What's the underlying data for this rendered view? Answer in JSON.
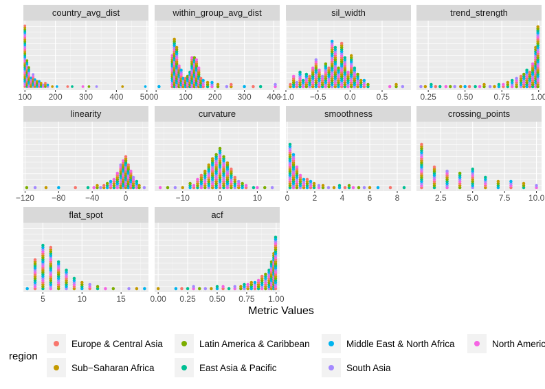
{
  "chart_data": {
    "type": "dotplot",
    "title": "",
    "xlabel": "Metric Values",
    "ylabel": "",
    "legend": {
      "title": "region",
      "placement": "bottom",
      "entries": [
        {
          "label": "Europe & Central Asia",
          "color": "#F8766D"
        },
        {
          "label": "Latin America & Caribbean",
          "color": "#7CAE00"
        },
        {
          "label": "Middle East & North Africa",
          "color": "#00B4EF"
        },
        {
          "label": "North America",
          "color": "#F564E3"
        },
        {
          "label": "Sub−Saharan Africa",
          "color": "#C49A00"
        },
        {
          "label": "East Asia & Pacific",
          "color": "#00C094"
        },
        {
          "label": "South Asia",
          "color": "#A58AFF"
        }
      ]
    },
    "panels": [
      {
        "name": "country_avg_dist",
        "xlim": [
          95,
          505
        ],
        "ticks": [
          100,
          200,
          300,
          400,
          500
        ],
        "tick_labels": [
          "100",
          "200",
          "300",
          "400",
          "500"
        ],
        "bins": [
          [
            100,
            36
          ],
          [
            107,
            16
          ],
          [
            113,
            12
          ],
          [
            120,
            6
          ],
          [
            127,
            8
          ],
          [
            133,
            5
          ],
          [
            140,
            4
          ],
          [
            147,
            4
          ],
          [
            153,
            3
          ],
          [
            160,
            2
          ],
          [
            167,
            3
          ],
          [
            175,
            2
          ],
          [
            190,
            1
          ],
          [
            205,
            1
          ],
          [
            240,
            1
          ],
          [
            255,
            1
          ],
          [
            290,
            1
          ],
          [
            310,
            1
          ],
          [
            335,
            1
          ],
          [
            420,
            1
          ],
          [
            495,
            1
          ]
        ]
      },
      {
        "name": "within_group_avg_dist",
        "xlim": [
          -5,
          420
        ],
        "ticks": [
          0,
          100,
          200,
          300,
          400
        ],
        "tick_labels": [
          "0",
          "100",
          "200",
          "300",
          "400"
        ],
        "bins": [
          [
            10,
            1
          ],
          [
            55,
            16
          ],
          [
            62,
            24
          ],
          [
            70,
            20
          ],
          [
            78,
            11
          ],
          [
            85,
            9
          ],
          [
            92,
            5
          ],
          [
            100,
            5
          ],
          [
            107,
            6
          ],
          [
            115,
            8
          ],
          [
            122,
            15
          ],
          [
            130,
            15
          ],
          [
            137,
            14
          ],
          [
            145,
            10
          ],
          [
            152,
            5
          ],
          [
            160,
            4
          ],
          [
            175,
            3
          ],
          [
            190,
            3
          ],
          [
            210,
            2
          ],
          [
            240,
            1
          ],
          [
            255,
            2
          ],
          [
            300,
            1
          ],
          [
            330,
            1
          ],
          [
            355,
            1
          ],
          [
            405,
            2
          ]
        ]
      },
      {
        "name": "sil_width",
        "xlim": [
          -1.0,
          0.95
        ],
        "ticks": [
          -1.0,
          -0.5,
          0.0,
          0.5
        ],
        "tick_labels": [
          "−1.0",
          "−0.5",
          "0.0",
          "0.5"
        ],
        "bins": [
          [
            -0.93,
            2
          ],
          [
            -0.88,
            6
          ],
          [
            -0.83,
            3
          ],
          [
            -0.78,
            8
          ],
          [
            -0.73,
            4
          ],
          [
            -0.68,
            7
          ],
          [
            -0.63,
            6
          ],
          [
            -0.58,
            10
          ],
          [
            -0.53,
            14
          ],
          [
            -0.48,
            9
          ],
          [
            -0.43,
            6
          ],
          [
            -0.38,
            12
          ],
          [
            -0.33,
            10
          ],
          [
            -0.28,
            23
          ],
          [
            -0.23,
            20
          ],
          [
            -0.18,
            10
          ],
          [
            -0.13,
            22
          ],
          [
            -0.08,
            15
          ],
          [
            -0.03,
            8
          ],
          [
            0.02,
            16
          ],
          [
            0.07,
            10
          ],
          [
            0.12,
            7
          ],
          [
            0.17,
            4
          ],
          [
            0.22,
            4
          ],
          [
            0.28,
            2
          ],
          [
            0.62,
            1
          ],
          [
            0.72,
            2
          ],
          [
            0.82,
            1
          ]
        ]
      },
      {
        "name": "trend_strength",
        "xlim": [
          0.17,
          1.02
        ],
        "ticks": [
          0.25,
          0.5,
          0.75,
          1.0
        ],
        "tick_labels": [
          "0.25",
          "0.50",
          "0.75",
          "1.00"
        ],
        "bins": [
          [
            0.2,
            1
          ],
          [
            0.23,
            1
          ],
          [
            0.27,
            2
          ],
          [
            0.3,
            1
          ],
          [
            0.33,
            1
          ],
          [
            0.37,
            1
          ],
          [
            0.4,
            1
          ],
          [
            0.43,
            1
          ],
          [
            0.47,
            1
          ],
          [
            0.5,
            1
          ],
          [
            0.53,
            1
          ],
          [
            0.57,
            1
          ],
          [
            0.6,
            1
          ],
          [
            0.63,
            2
          ],
          [
            0.67,
            1
          ],
          [
            0.7,
            1
          ],
          [
            0.73,
            2
          ],
          [
            0.76,
            2
          ],
          [
            0.79,
            3
          ],
          [
            0.82,
            4
          ],
          [
            0.85,
            5
          ],
          [
            0.88,
            6
          ],
          [
            0.9,
            7
          ],
          [
            0.92,
            9
          ],
          [
            0.94,
            8
          ],
          [
            0.96,
            12
          ],
          [
            0.98,
            20
          ],
          [
            0.995,
            30
          ]
        ]
      },
      {
        "name": "linearity",
        "xlim": [
          -122,
          27
        ],
        "ticks": [
          -120,
          -80,
          -40,
          0
        ],
        "tick_labels": [
          "−120",
          "−80",
          "−40",
          "0"
        ],
        "bins": [
          [
            -118,
            1
          ],
          [
            -108,
            1
          ],
          [
            -95,
            1
          ],
          [
            -80,
            1
          ],
          [
            -60,
            1
          ],
          [
            -45,
            1
          ],
          [
            -38,
            1
          ],
          [
            -34,
            2
          ],
          [
            -30,
            1
          ],
          [
            -26,
            2
          ],
          [
            -22,
            3
          ],
          [
            -18,
            4
          ],
          [
            -14,
            5
          ],
          [
            -10,
            8
          ],
          [
            -6,
            12
          ],
          [
            -3,
            14
          ],
          [
            0,
            16
          ],
          [
            3,
            12
          ],
          [
            6,
            9
          ],
          [
            9,
            6
          ],
          [
            13,
            4
          ],
          [
            16,
            2
          ],
          [
            22,
            1
          ]
        ]
      },
      {
        "name": "curvature",
        "xlim": [
          -17.5,
          16
        ],
        "ticks": [
          -10,
          0,
          10
        ],
        "tick_labels": [
          "−10",
          "0",
          "10"
        ],
        "bins": [
          [
            -16,
            1
          ],
          [
            -14,
            1
          ],
          [
            -12,
            1
          ],
          [
            -10,
            1
          ],
          [
            -8,
            3
          ],
          [
            -7,
            2
          ],
          [
            -6,
            5
          ],
          [
            -5,
            7
          ],
          [
            -4,
            9
          ],
          [
            -3,
            12
          ],
          [
            -2,
            15
          ],
          [
            -1,
            17
          ],
          [
            0,
            20
          ],
          [
            1,
            16
          ],
          [
            2,
            13
          ],
          [
            3,
            10
          ],
          [
            4,
            6
          ],
          [
            5,
            4
          ],
          [
            6,
            3
          ],
          [
            7,
            2
          ],
          [
            9,
            1
          ],
          [
            10,
            1
          ],
          [
            12,
            1
          ],
          [
            14,
            1
          ]
        ]
      },
      {
        "name": "smoothness",
        "xlim": [
          -0.1,
          9.0
        ],
        "ticks": [
          0,
          2,
          4,
          6,
          8
        ],
        "tick_labels": [
          "0",
          "2",
          "4",
          "6",
          "8"
        ],
        "bins": [
          [
            0.2,
            22
          ],
          [
            0.45,
            17
          ],
          [
            0.7,
            11
          ],
          [
            0.95,
            7
          ],
          [
            1.2,
            5
          ],
          [
            1.45,
            5
          ],
          [
            1.7,
            4
          ],
          [
            1.95,
            3
          ],
          [
            2.3,
            2
          ],
          [
            2.6,
            2
          ],
          [
            3.0,
            1
          ],
          [
            3.4,
            1
          ],
          [
            3.8,
            2
          ],
          [
            4.2,
            1
          ],
          [
            4.5,
            2
          ],
          [
            4.8,
            1
          ],
          [
            5.2,
            1
          ],
          [
            5.6,
            1
          ],
          [
            6.0,
            1
          ],
          [
            6.6,
            1
          ],
          [
            7.5,
            1
          ],
          [
            8.5,
            1
          ]
        ]
      },
      {
        "name": "crossing_points",
        "xlim": [
          0.6,
          10.4
        ],
        "ticks": [
          2.5,
          5.0,
          7.5,
          10.0
        ],
        "tick_labels": [
          "2.5",
          "5.0",
          "7.5",
          "10.0"
        ],
        "bins": [
          [
            1,
            22
          ],
          [
            2,
            11
          ],
          [
            3,
            9
          ],
          [
            4,
            8
          ],
          [
            5,
            10
          ],
          [
            6,
            6
          ],
          [
            7,
            4
          ],
          [
            8,
            4
          ],
          [
            9,
            3
          ],
          [
            10,
            2
          ]
        ]
      },
      {
        "name": "flat_spot",
        "xlim": [
          2.5,
          18.5
        ],
        "ticks": [
          5,
          10,
          15
        ],
        "tick_labels": [
          "5",
          "10",
          "15"
        ],
        "bins": [
          [
            3,
            1
          ],
          [
            4,
            15
          ],
          [
            5,
            22
          ],
          [
            6,
            21
          ],
          [
            7,
            14
          ],
          [
            8,
            10
          ],
          [
            9,
            6
          ],
          [
            10,
            4
          ],
          [
            11,
            3
          ],
          [
            12,
            2
          ],
          [
            13,
            1
          ],
          [
            14,
            1
          ],
          [
            16,
            1
          ],
          [
            17,
            1
          ],
          [
            18,
            1
          ]
        ]
      },
      {
        "name": "acf",
        "xlim": [
          -0.03,
          1.03
        ],
        "ticks": [
          0.0,
          0.25,
          0.5,
          0.75,
          1.0
        ],
        "tick_labels": [
          "0.00",
          "0.25",
          "0.50",
          "0.75",
          "1.00"
        ],
        "bins": [
          [
            0.0,
            1
          ],
          [
            0.15,
            1
          ],
          [
            0.2,
            1
          ],
          [
            0.25,
            1
          ],
          [
            0.3,
            2
          ],
          [
            0.35,
            1
          ],
          [
            0.4,
            1
          ],
          [
            0.45,
            1
          ],
          [
            0.5,
            2
          ],
          [
            0.55,
            2
          ],
          [
            0.6,
            1
          ],
          [
            0.65,
            2
          ],
          [
            0.7,
            2
          ],
          [
            0.73,
            3
          ],
          [
            0.76,
            3
          ],
          [
            0.79,
            4
          ],
          [
            0.82,
            4
          ],
          [
            0.85,
            5
          ],
          [
            0.88,
            7
          ],
          [
            0.91,
            8
          ],
          [
            0.94,
            10
          ],
          [
            0.96,
            14
          ],
          [
            0.98,
            18
          ],
          [
            0.995,
            26
          ]
        ]
      }
    ]
  }
}
